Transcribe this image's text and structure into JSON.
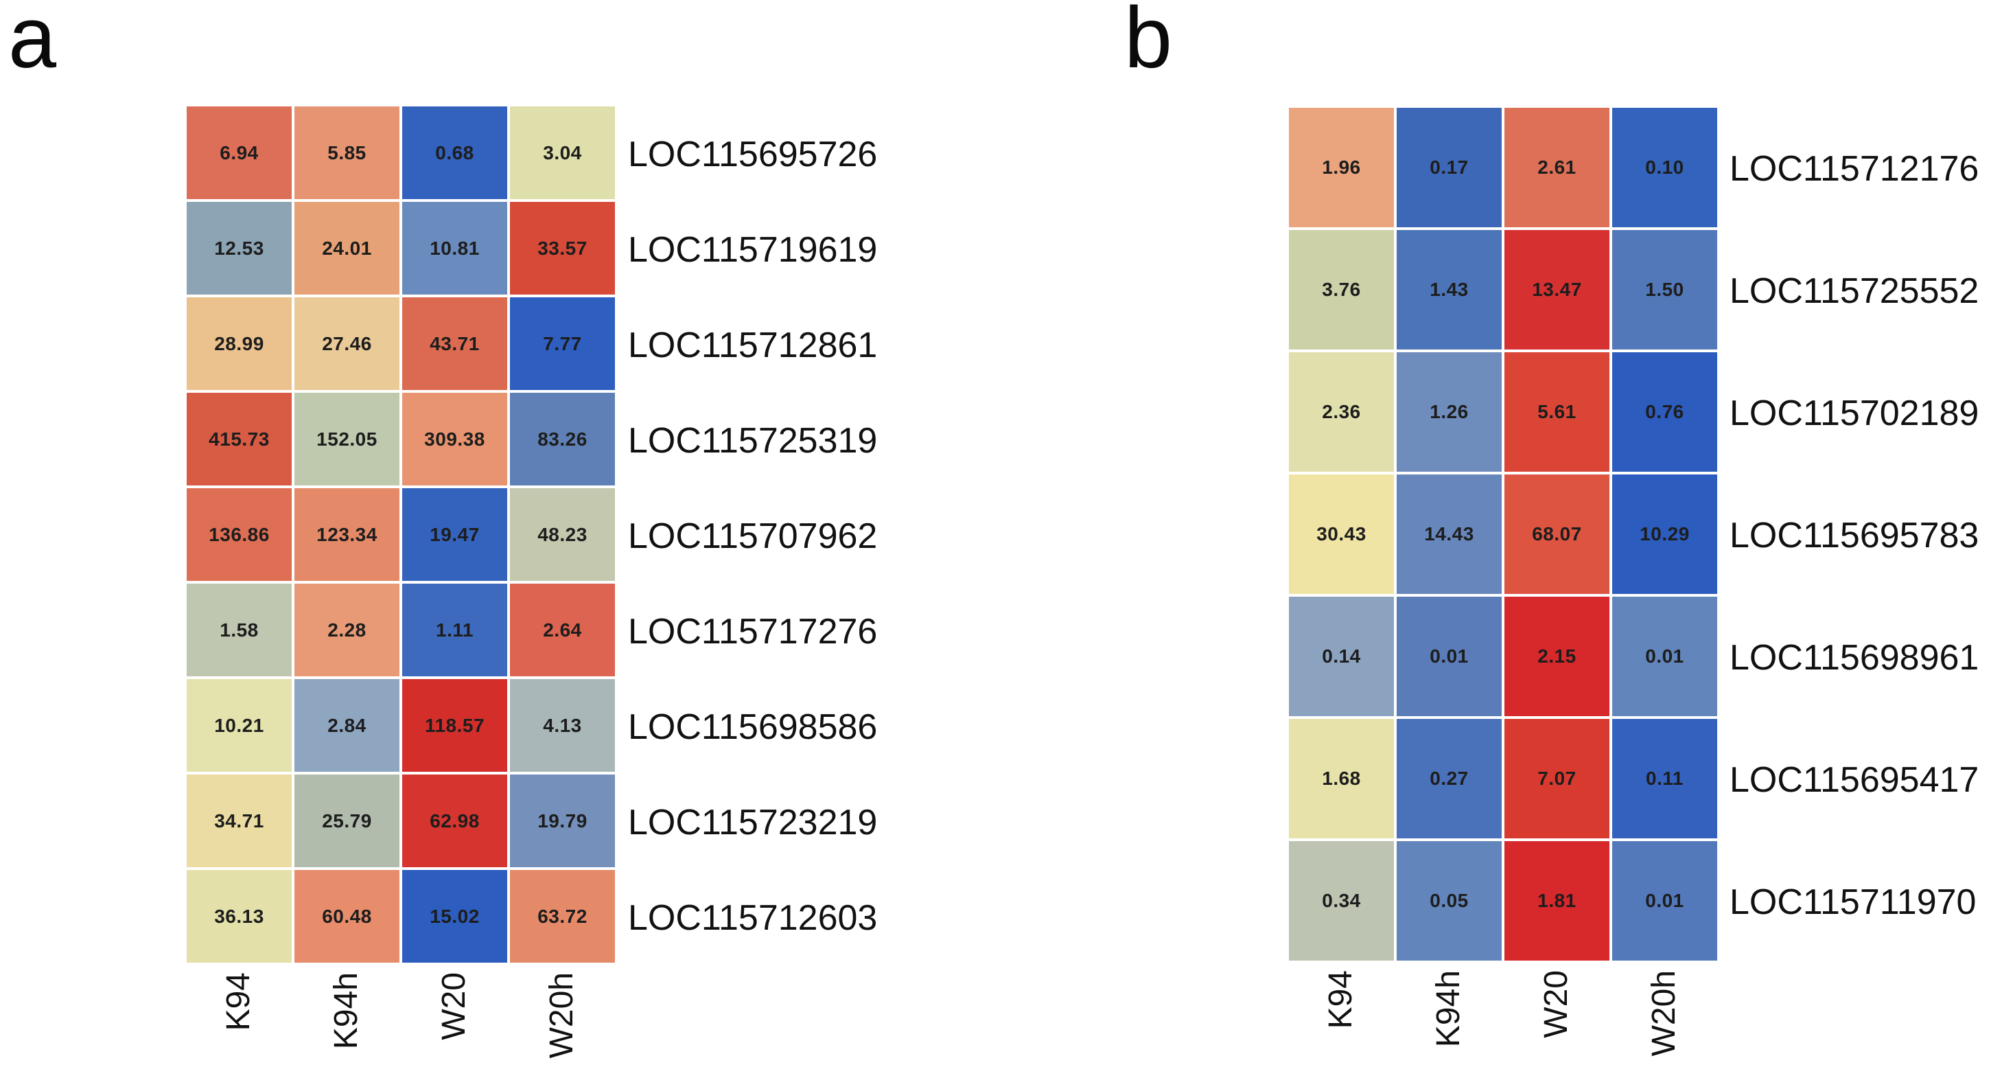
{
  "chart_data": [
    {
      "type": "heatmap",
      "panel_label": "a",
      "legend_position": "none",
      "grid": false,
      "columns": [
        "K94",
        "K94h",
        "W20",
        "W20h"
      ],
      "rows": [
        "LOC115695726",
        "LOC115719619",
        "LOC115712861",
        "LOC115725319",
        "LOC115707962",
        "LOC115717276",
        "LOC115698586",
        "LOC115723219",
        "LOC115712603"
      ],
      "values": [
        [
          6.94,
          5.85,
          0.68,
          3.04
        ],
        [
          12.53,
          24.01,
          10.81,
          33.57
        ],
        [
          28.99,
          27.46,
          43.71,
          7.77
        ],
        [
          415.73,
          152.05,
          309.38,
          83.26
        ],
        [
          136.86,
          123.34,
          19.47,
          48.23
        ],
        [
          1.58,
          2.28,
          1.11,
          2.64
        ],
        [
          10.21,
          2.84,
          118.57,
          4.13
        ],
        [
          34.71,
          25.79,
          62.98,
          19.79
        ],
        [
          36.13,
          60.48,
          15.02,
          63.72
        ]
      ],
      "cell_colors": [
        [
          "#DD6E57",
          "#E69471",
          "#3361BE",
          "#DFDFAC"
        ],
        [
          "#8DA4B5",
          "#E6A276",
          "#6A8BBE",
          "#D74A38"
        ],
        [
          "#EBC28D",
          "#EACA96",
          "#DC6A50",
          "#2E5EBF"
        ],
        [
          "#D85B44",
          "#BFC9AE",
          "#E89470",
          "#5F80B7"
        ],
        [
          "#DE6E54",
          "#E58A68",
          "#3463BE",
          "#C3C8AE"
        ],
        [
          "#C0C7B1",
          "#E79A75",
          "#3E6ABD",
          "#DC6450"
        ],
        [
          "#E4E3AD",
          "#8EA6C0",
          "#D42E2B",
          "#A9B7B9"
        ],
        [
          "#EADCA2",
          "#B1BCAD",
          "#D5352E",
          "#7590BA"
        ],
        [
          "#E4E0A9",
          "#E78D6B",
          "#2D5DBF",
          "#E58A69"
        ]
      ]
    },
    {
      "type": "heatmap",
      "panel_label": "b",
      "legend_position": "none",
      "grid": false,
      "columns": [
        "K94",
        "K94h",
        "W20",
        "W20h"
      ],
      "rows": [
        "LOC115712176",
        "LOC115725552",
        "LOC115702189",
        "LOC115695783",
        "LOC115698961",
        "LOC115695417",
        "LOC115711970"
      ],
      "values": [
        [
          1.96,
          0.17,
          2.61,
          0.1
        ],
        [
          3.76,
          1.43,
          13.47,
          1.5
        ],
        [
          2.36,
          1.26,
          5.61,
          0.76
        ],
        [
          30.43,
          14.43,
          68.07,
          10.29
        ],
        [
          0.14,
          0.01,
          2.15,
          0.01
        ],
        [
          1.68,
          0.27,
          7.07,
          0.11
        ],
        [
          0.34,
          0.05,
          1.81,
          0.01
        ]
      ],
      "cell_colors": [
        [
          "#EBA57E",
          "#3D67B7",
          "#DE7058",
          "#3363BD"
        ],
        [
          "#CCD1A8",
          "#4C74B9",
          "#D73030",
          "#5278B9"
        ],
        [
          "#E1E0AD",
          "#6E8CBC",
          "#DA4536",
          "#2C5CBE"
        ],
        [
          "#EFE4A4",
          "#6787BC",
          "#DD5440",
          "#2B5CBE"
        ],
        [
          "#8BA3BE",
          "#5A7CB8",
          "#D7282B",
          "#6285BB"
        ],
        [
          "#E6E2A9",
          "#4A72BA",
          "#D93A30",
          "#3361BD"
        ],
        [
          "#BDC4B1",
          "#6286BB",
          "#D7282B",
          "#5379BB"
        ]
      ]
    }
  ],
  "colors": {
    "background": "#ffffff",
    "cell_gap": "#ffffff",
    "text": "#111111",
    "high_value_red": "#D7282B",
    "low_value_blue": "#2C5CBE",
    "mid_value_yellow": "#E4E0A9"
  }
}
